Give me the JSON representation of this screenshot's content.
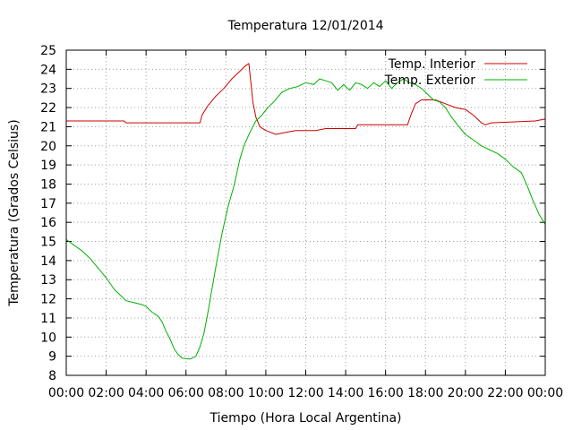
{
  "chart_data": {
    "type": "line",
    "title": "Temperatura 12/01/2014",
    "xlabel": "Tiempo (Hora Local Argentina)",
    "ylabel": "Temperatura (Grados Celsius)",
    "xlim": [
      0,
      24
    ],
    "ylim": [
      8,
      25
    ],
    "xticks": [
      {
        "value": 0,
        "label": "00:00"
      },
      {
        "value": 2,
        "label": "02:00"
      },
      {
        "value": 4,
        "label": "04:00"
      },
      {
        "value": 6,
        "label": "06:00"
      },
      {
        "value": 8,
        "label": "08:00"
      },
      {
        "value": 10,
        "label": "10:00"
      },
      {
        "value": 12,
        "label": "12:00"
      },
      {
        "value": 14,
        "label": "14:00"
      },
      {
        "value": 16,
        "label": "16:00"
      },
      {
        "value": 18,
        "label": "18:00"
      },
      {
        "value": 20,
        "label": "20:00"
      },
      {
        "value": 22,
        "label": "22:00"
      },
      {
        "value": 24,
        "label": "00:00"
      }
    ],
    "yticks": [
      8,
      9,
      10,
      11,
      12,
      13,
      14,
      15,
      16,
      17,
      18,
      19,
      20,
      21,
      22,
      23,
      24,
      25
    ],
    "grid": true,
    "legend_position": "top-right",
    "series": [
      {
        "name": "Temp. Interior",
        "color": "#cc0000",
        "points": [
          [
            0,
            21.3
          ],
          [
            2.9,
            21.3
          ],
          [
            3.0,
            21.2
          ],
          [
            6.7,
            21.2
          ],
          [
            6.8,
            21.6
          ],
          [
            7.1,
            22.1
          ],
          [
            7.5,
            22.6
          ],
          [
            7.9,
            23.0
          ],
          [
            8.3,
            23.5
          ],
          [
            8.7,
            23.9
          ],
          [
            9.0,
            24.2
          ],
          [
            9.15,
            24.3
          ],
          [
            9.25,
            23.3
          ],
          [
            9.35,
            22.3
          ],
          [
            9.5,
            21.5
          ],
          [
            9.7,
            21.0
          ],
          [
            10.0,
            20.8
          ],
          [
            10.5,
            20.6
          ],
          [
            11.0,
            20.7
          ],
          [
            11.5,
            20.8
          ],
          [
            12.5,
            20.8
          ],
          [
            13.0,
            20.9
          ],
          [
            14.5,
            20.9
          ],
          [
            14.6,
            21.1
          ],
          [
            17.1,
            21.1
          ],
          [
            17.3,
            21.7
          ],
          [
            17.5,
            22.2
          ],
          [
            17.8,
            22.4
          ],
          [
            18.5,
            22.4
          ],
          [
            19.0,
            22.2
          ],
          [
            19.5,
            22.0
          ],
          [
            20.0,
            21.9
          ],
          [
            20.4,
            21.6
          ],
          [
            20.8,
            21.2
          ],
          [
            21.0,
            21.1
          ],
          [
            21.3,
            21.2
          ],
          [
            23.5,
            21.3
          ],
          [
            24.0,
            21.4
          ]
        ]
      },
      {
        "name": "Temp. Exterior",
        "color": "#00b000",
        "points": [
          [
            0,
            15.1
          ],
          [
            0.4,
            14.8
          ],
          [
            0.8,
            14.5
          ],
          [
            1.2,
            14.1
          ],
          [
            1.6,
            13.6
          ],
          [
            2.0,
            13.1
          ],
          [
            2.4,
            12.5
          ],
          [
            2.8,
            12.1
          ],
          [
            3.0,
            11.9
          ],
          [
            3.4,
            11.8
          ],
          [
            3.8,
            11.7
          ],
          [
            4.0,
            11.6
          ],
          [
            4.3,
            11.3
          ],
          [
            4.6,
            11.1
          ],
          [
            4.8,
            10.8
          ],
          [
            5.0,
            10.3
          ],
          [
            5.2,
            9.9
          ],
          [
            5.4,
            9.4
          ],
          [
            5.6,
            9.1
          ],
          [
            5.8,
            8.9
          ],
          [
            6.2,
            8.85
          ],
          [
            6.5,
            9.0
          ],
          [
            6.7,
            9.5
          ],
          [
            6.9,
            10.2
          ],
          [
            7.1,
            11.3
          ],
          [
            7.3,
            12.5
          ],
          [
            7.5,
            13.7
          ],
          [
            7.8,
            15.4
          ],
          [
            8.1,
            16.8
          ],
          [
            8.4,
            17.9
          ],
          [
            8.7,
            19.3
          ],
          [
            8.9,
            20.0
          ],
          [
            9.2,
            20.7
          ],
          [
            9.5,
            21.3
          ],
          [
            9.8,
            21.6
          ],
          [
            10.1,
            22.0
          ],
          [
            10.4,
            22.3
          ],
          [
            10.8,
            22.8
          ],
          [
            11.2,
            23.0
          ],
          [
            11.6,
            23.1
          ],
          [
            12.0,
            23.3
          ],
          [
            12.4,
            23.2
          ],
          [
            12.7,
            23.5
          ],
          [
            13.0,
            23.4
          ],
          [
            13.3,
            23.3
          ],
          [
            13.6,
            22.9
          ],
          [
            13.9,
            23.2
          ],
          [
            14.2,
            22.9
          ],
          [
            14.5,
            23.3
          ],
          [
            14.8,
            23.2
          ],
          [
            15.1,
            23.0
          ],
          [
            15.4,
            23.3
          ],
          [
            15.7,
            23.1
          ],
          [
            16.0,
            23.4
          ],
          [
            16.3,
            23.0
          ],
          [
            16.6,
            23.3
          ],
          [
            16.9,
            23.5
          ],
          [
            17.2,
            23.3
          ],
          [
            17.5,
            23.2
          ],
          [
            17.8,
            23.0
          ],
          [
            18.1,
            22.7
          ],
          [
            18.4,
            22.4
          ],
          [
            18.7,
            22.3
          ],
          [
            19.0,
            22.0
          ],
          [
            19.3,
            21.5
          ],
          [
            19.6,
            21.1
          ],
          [
            20.0,
            20.6
          ],
          [
            20.4,
            20.3
          ],
          [
            20.8,
            20.0
          ],
          [
            21.2,
            19.8
          ],
          [
            21.6,
            19.6
          ],
          [
            22.0,
            19.3
          ],
          [
            22.4,
            18.9
          ],
          [
            22.8,
            18.6
          ],
          [
            23.1,
            17.9
          ],
          [
            23.4,
            17.1
          ],
          [
            23.7,
            16.4
          ],
          [
            24.0,
            15.9
          ]
        ]
      }
    ]
  }
}
